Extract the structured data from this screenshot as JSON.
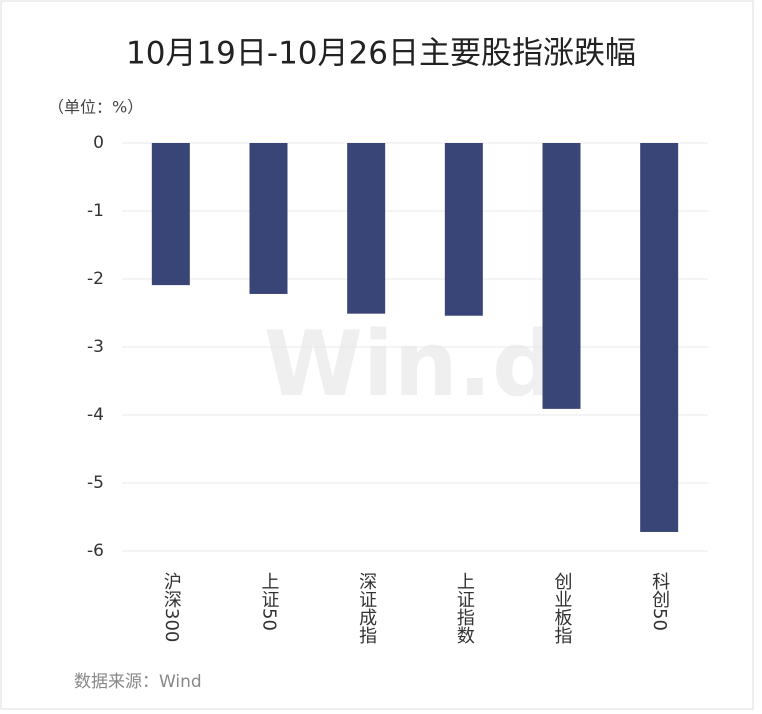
{
  "chart_data": {
    "type": "bar",
    "title": "10月19日-10月26日主要股指涨跌幅",
    "unit_label": "（单位：%）",
    "source": "数据来源：Wind",
    "watermark": "Win.d",
    "categories": [
      "沪深300",
      "上证50",
      "深证成指",
      "上证指数",
      "创业板指",
      "科创50"
    ],
    "values": [
      -2.09,
      -2.22,
      -2.51,
      -2.54,
      -3.91,
      -5.72
    ],
    "color": "#3a4577",
    "ylim": [
      -6,
      0
    ],
    "yticks": [
      0,
      -1,
      -2,
      -3,
      -4,
      -5,
      -6
    ],
    "grid": true
  }
}
